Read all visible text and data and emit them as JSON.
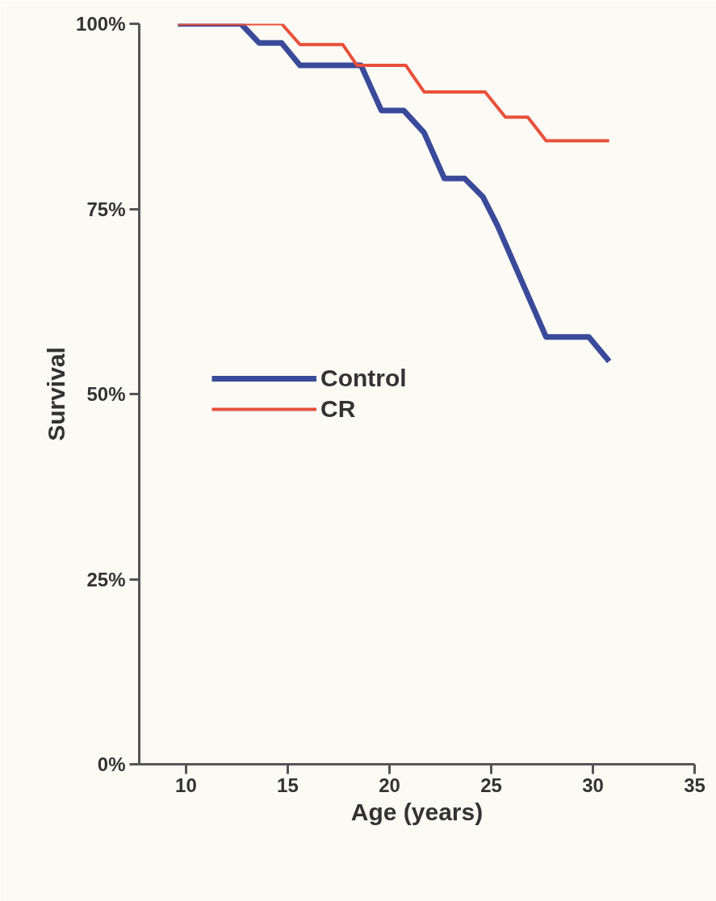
{
  "chart_data": {
    "type": "line",
    "xlabel": "Age (years)",
    "ylabel": "Survival",
    "xlim": [
      7.7,
      35
    ],
    "xticks": [
      10,
      15,
      20,
      25,
      30,
      35
    ],
    "ylim": [
      0,
      100
    ],
    "yticks": [
      {
        "value": 0,
        "label": "0%"
      },
      {
        "value": 25,
        "label": "25%"
      },
      {
        "value": 50,
        "label": "50%"
      },
      {
        "value": 75,
        "label": "75%"
      },
      {
        "value": 100,
        "label": "100%"
      }
    ],
    "grid": false,
    "legend": "center left",
    "marker": "none",
    "line_style": "solid",
    "series": [
      {
        "name": "Control",
        "color": "#3a4a9a",
        "x": [
          9.6,
          12.7,
          13.6,
          14.7,
          15.6,
          18.6,
          19.6,
          20.7,
          21.7,
          22.7,
          23.7,
          24.6,
          25.3,
          27.7,
          29.8,
          30.8
        ],
        "values": [
          100,
          100,
          97.4,
          97.4,
          94.4,
          94.4,
          88.3,
          88.3,
          85.3,
          79.1,
          79.1,
          76.6,
          72.8,
          57.7,
          57.7,
          54.4
        ]
      },
      {
        "name": "CR",
        "color": "#e8503a",
        "x": [
          9.6,
          12.7,
          14.7,
          15.6,
          17.7,
          18.4,
          20.8,
          21.7,
          24.7,
          25.7,
          26.8,
          27.7,
          30.8
        ],
        "values": [
          100,
          100,
          100,
          97.2,
          97.2,
          94.4,
          94.4,
          90.8,
          90.8,
          87.4,
          87.4,
          84.2,
          84.2
        ]
      }
    ]
  }
}
